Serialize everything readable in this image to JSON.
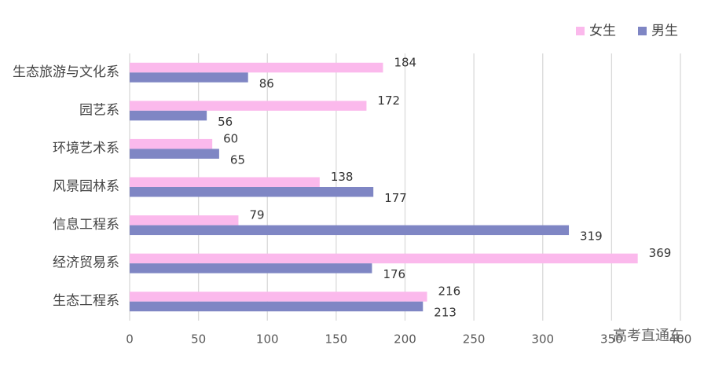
{
  "chart_data": {
    "type": "hbar",
    "categories": [
      "生态旅游与文化系",
      "园艺系",
      "环境艺术系",
      "风景园林系",
      "信息工程系",
      "经济贸易系",
      "生态工程系"
    ],
    "series": [
      {
        "name": "女生",
        "color": "#fbb9ec",
        "values": [
          184,
          172,
          60,
          138,
          79,
          369,
          216
        ]
      },
      {
        "name": "男生",
        "color": "#7f86c4",
        "values": [
          86,
          56,
          65,
          177,
          319,
          176,
          213
        ]
      }
    ],
    "xlim": [
      0,
      400
    ],
    "xticks": [
      0,
      50,
      100,
      150,
      200,
      250,
      300,
      350,
      400
    ],
    "grid": true,
    "legend": "top-right",
    "watermark": "高考直通车"
  }
}
